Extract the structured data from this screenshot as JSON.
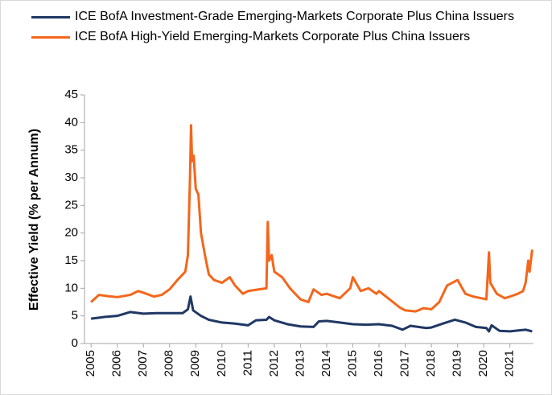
{
  "chart_data": {
    "type": "line",
    "y_label": "Effective Yield (% per Annum)",
    "series": [
      {
        "name": "ICE BofA Investment-Grade Emerging-Markets Corporate Plus China Issuers",
        "color": "#1f3864",
        "x": [
          2005.0,
          2005.5,
          2006.0,
          2006.5,
          2007.0,
          2007.5,
          2008.0,
          2008.5,
          2008.7,
          2008.8,
          2008.9,
          2009.2,
          2009.5,
          2010.0,
          2010.5,
          2011.0,
          2011.3,
          2011.7,
          2011.8,
          2012.0,
          2012.5,
          2013.0,
          2013.5,
          2013.7,
          2014.0,
          2014.5,
          2015.0,
          2015.5,
          2016.0,
          2016.5,
          2016.9,
          2017.2,
          2017.8,
          2018.0,
          2018.5,
          2018.9,
          2019.3,
          2019.7,
          2020.1,
          2020.2,
          2020.3,
          2020.6,
          2021.0,
          2021.4,
          2021.6,
          2021.85
        ],
        "values": [
          4.5,
          4.8,
          5.0,
          5.7,
          5.4,
          5.5,
          5.5,
          5.5,
          6.2,
          8.5,
          6.0,
          5.0,
          4.3,
          3.8,
          3.6,
          3.3,
          4.2,
          4.3,
          4.8,
          4.2,
          3.5,
          3.1,
          3.0,
          4.0,
          4.1,
          3.8,
          3.5,
          3.4,
          3.5,
          3.2,
          2.5,
          3.2,
          2.8,
          2.9,
          3.7,
          4.3,
          3.8,
          3.0,
          2.8,
          2.2,
          3.3,
          2.3,
          2.2,
          2.4,
          2.5,
          2.2
        ]
      },
      {
        "name": "ICE BofA High-Yield Emerging-Markets Corporate Plus China Issuers",
        "color": "#f4661b",
        "x": [
          2005.0,
          2005.3,
          2005.6,
          2006.0,
          2006.5,
          2006.8,
          2007.0,
          2007.4,
          2007.7,
          2008.0,
          2008.3,
          2008.5,
          2008.6,
          2008.7,
          2008.78,
          2008.82,
          2008.86,
          2008.92,
          2009.0,
          2009.1,
          2009.2,
          2009.35,
          2009.5,
          2009.7,
          2010.0,
          2010.3,
          2010.5,
          2010.8,
          2011.0,
          2011.4,
          2011.7,
          2011.75,
          2011.8,
          2011.9,
          2012.0,
          2012.3,
          2012.6,
          2012.9,
          2013.0,
          2013.3,
          2013.5,
          2013.8,
          2014.0,
          2014.5,
          2014.9,
          2015.0,
          2015.3,
          2015.6,
          2015.9,
          2016.0,
          2016.4,
          2016.8,
          2017.0,
          2017.4,
          2017.7,
          2018.0,
          2018.3,
          2018.5,
          2018.6,
          2018.8,
          2019.0,
          2019.3,
          2019.6,
          2019.9,
          2020.1,
          2020.2,
          2020.25,
          2020.5,
          2020.8,
          2021.0,
          2021.3,
          2021.5,
          2021.6,
          2021.7,
          2021.75,
          2021.85
        ],
        "values": [
          7.5,
          8.8,
          8.6,
          8.4,
          8.8,
          9.5,
          9.2,
          8.5,
          8.8,
          9.8,
          11.5,
          12.5,
          13,
          16,
          30,
          39.5,
          33,
          34,
          28,
          27,
          20,
          16,
          12.5,
          11.5,
          11,
          12,
          10.5,
          9,
          9.5,
          9.8,
          10,
          22,
          15,
          16,
          13,
          12,
          10,
          8.5,
          8,
          7.5,
          9.8,
          8.8,
          9,
          8.2,
          10,
          12,
          9.5,
          10,
          9,
          9.5,
          8,
          6.5,
          6,
          5.8,
          6.4,
          6.2,
          7.5,
          9.5,
          10.5,
          11,
          11.5,
          9,
          8.5,
          8.2,
          8,
          16.5,
          11,
          9,
          8.2,
          8.5,
          9,
          9.5,
          11,
          15,
          13,
          17
        ]
      }
    ],
    "xlim": [
      2004.75,
      2021.9
    ],
    "xticks": [
      2005,
      2006,
      2007,
      2008,
      2009,
      2010,
      2011,
      2012,
      2013,
      2014,
      2015,
      2016,
      2017,
      2018,
      2019,
      2020,
      2021
    ],
    "ylim": [
      0,
      45
    ],
    "yticks": [
      0,
      5,
      10,
      15,
      20,
      25,
      30,
      35,
      40,
      45
    ],
    "grid": false
  }
}
